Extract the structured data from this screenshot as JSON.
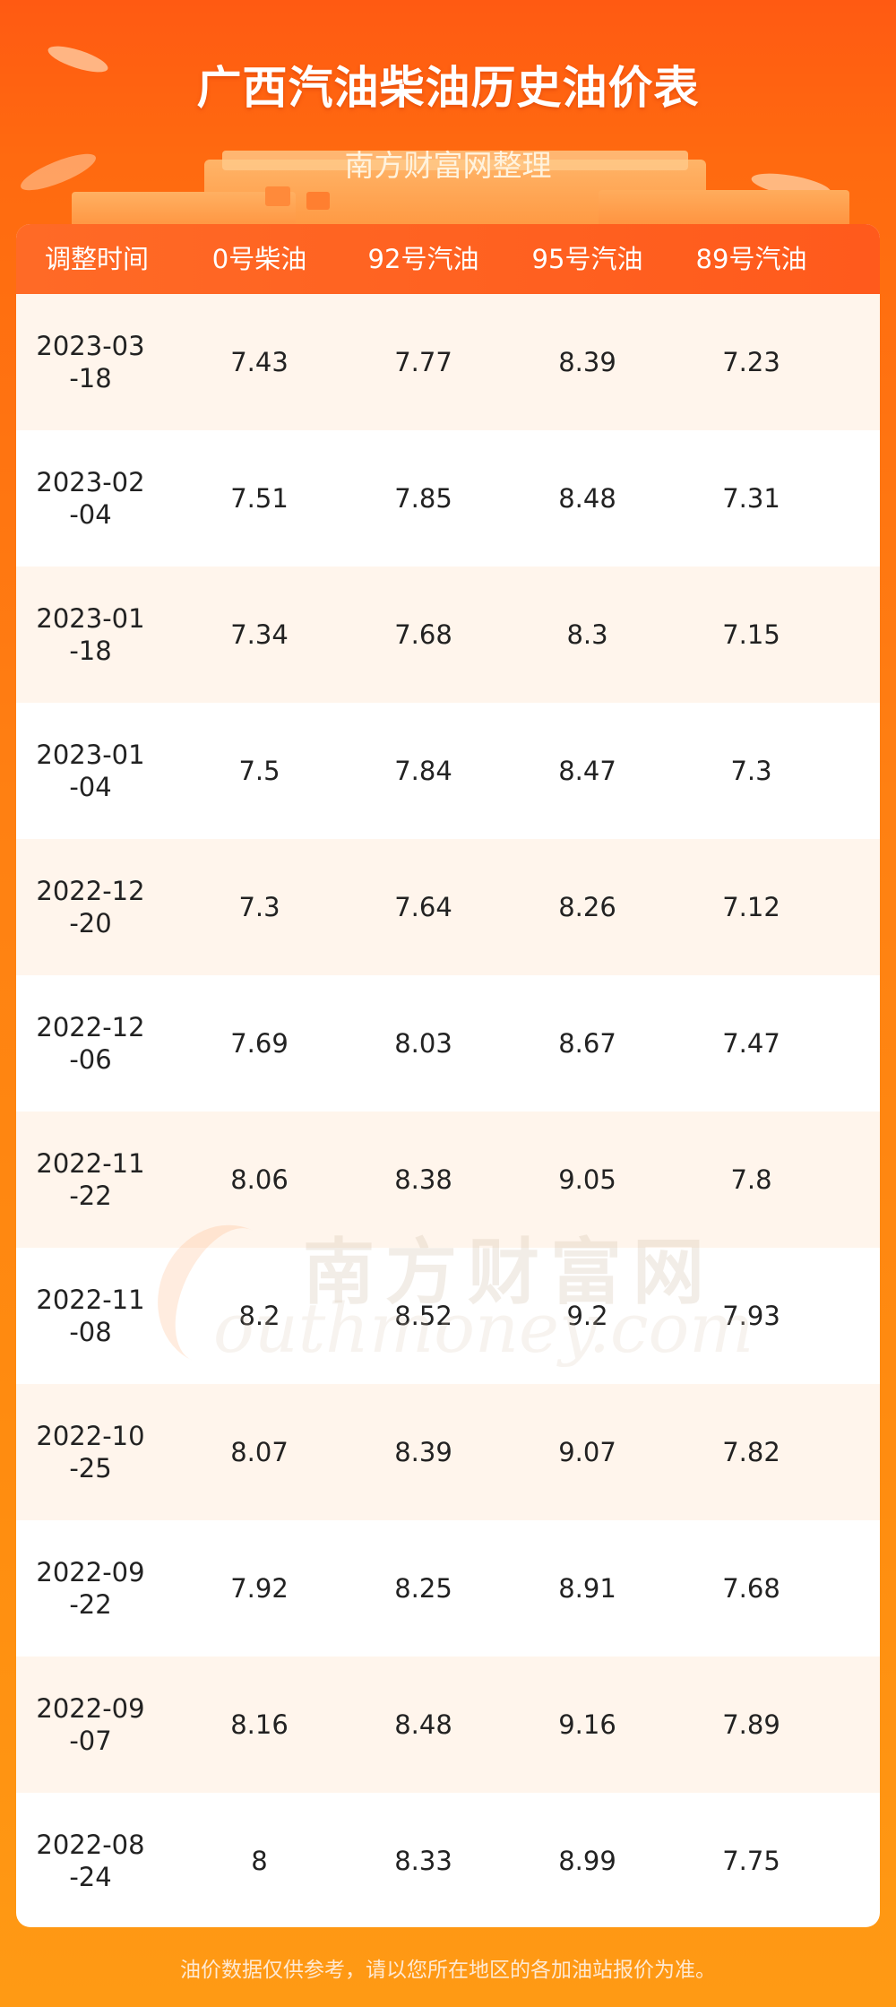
{
  "header": {
    "title": "广西汽油柴油历史油价表",
    "subtitle": "南方财富网整理"
  },
  "table": {
    "columns": [
      "调整时间",
      "0号柴油",
      "92号汽油",
      "95号汽油",
      "89号汽油"
    ],
    "rows": [
      {
        "date": "2023-03-18",
        "diesel0": "7.43",
        "gas92": "7.77",
        "gas95": "8.39",
        "gas89": "7.23"
      },
      {
        "date": "2023-02-04",
        "diesel0": "7.51",
        "gas92": "7.85",
        "gas95": "8.48",
        "gas89": "7.31"
      },
      {
        "date": "2023-01-18",
        "diesel0": "7.34",
        "gas92": "7.68",
        "gas95": "8.3",
        "gas89": "7.15"
      },
      {
        "date": "2023-01-04",
        "diesel0": "7.5",
        "gas92": "7.84",
        "gas95": "8.47",
        "gas89": "7.3"
      },
      {
        "date": "2022-12-20",
        "diesel0": "7.3",
        "gas92": "7.64",
        "gas95": "8.26",
        "gas89": "7.12"
      },
      {
        "date": "2022-12-06",
        "diesel0": "7.69",
        "gas92": "8.03",
        "gas95": "8.67",
        "gas89": "7.47"
      },
      {
        "date": "2022-11-22",
        "diesel0": "8.06",
        "gas92": "8.38",
        "gas95": "9.05",
        "gas89": "7.8"
      },
      {
        "date": "2022-11-08",
        "diesel0": "8.2",
        "gas92": "8.52",
        "gas95": "9.2",
        "gas89": "7.93"
      },
      {
        "date": "2022-10-25",
        "diesel0": "8.07",
        "gas92": "8.39",
        "gas95": "9.07",
        "gas89": "7.82"
      },
      {
        "date": "2022-09-22",
        "diesel0": "7.92",
        "gas92": "8.25",
        "gas95": "8.91",
        "gas89": "7.68"
      },
      {
        "date": "2022-09-07",
        "diesel0": "8.16",
        "gas92": "8.48",
        "gas95": "9.16",
        "gas89": "7.89"
      },
      {
        "date": "2022-08-24",
        "diesel0": "8",
        "gas92": "8.33",
        "gas95": "8.99",
        "gas89": "7.75"
      }
    ]
  },
  "watermark": {
    "cn": "南方财富网",
    "en": "outhmoney.com"
  },
  "footer": {
    "note": "油价数据仅供参考，请以您所在地区的各加油站报价为准。"
  },
  "colors": {
    "header_bg": "#ff5a1c",
    "row_alt_bg": "#fff5ec",
    "page_bg": "#ff8012"
  }
}
